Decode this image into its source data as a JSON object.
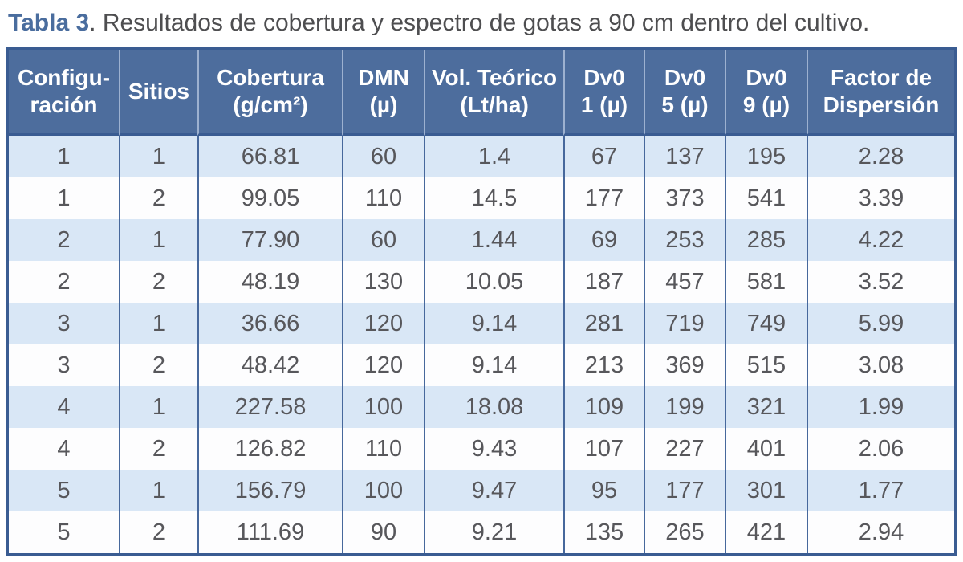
{
  "caption": {
    "label": "Tabla 3",
    "text": ". Resultados de cobertura y espectro de gotas a 90 cm dentro del cultivo."
  },
  "colors": {
    "header_bg": "#4d6d9d",
    "header_text": "#ffffff",
    "row_alt_bg": "#d9e7f6",
    "row_bg": "#fdfdfe",
    "outer_border": "#3a5c92",
    "data_divider": "#47689c",
    "header_divider": "#9db1d0",
    "caption_accent": "#4a6d9e",
    "body_text": "#57575b"
  },
  "chart_data": {
    "type": "table",
    "title": "Tabla 3. Resultados de cobertura y espectro de gotas a 90 cm dentro del cultivo.",
    "columns": [
      "Configu-ración",
      "Sitios",
      "Cobertura (g/cm²)",
      "DMN (µ)",
      "Vol. Teórico (Lt/ha)",
      "Dv0 1 (µ)",
      "Dv0 5 (µ)",
      "Dv0 9 (µ)",
      "Factor de Dispersión"
    ],
    "header_lines": [
      [
        "Configu-",
        "ración"
      ],
      [
        "Sitios"
      ],
      [
        "Cobertura",
        "(g/cm²)"
      ],
      [
        "DMN",
        "(µ)"
      ],
      [
        "Vol. Teórico",
        "(Lt/ha)"
      ],
      [
        "Dv0",
        "1 (µ)"
      ],
      [
        "Dv0",
        "5 (µ)"
      ],
      [
        "Dv0",
        "9 (µ)"
      ],
      [
        "Factor de",
        "Dispersión"
      ]
    ],
    "rows": [
      [
        "1",
        "1",
        "66.81",
        "60",
        "1.4",
        "67",
        "137",
        "195",
        "2.28"
      ],
      [
        "1",
        "2",
        "99.05",
        "110",
        "14.5",
        "177",
        "373",
        "541",
        "3.39"
      ],
      [
        "2",
        "1",
        "77.90",
        "60",
        "1.44",
        "69",
        "253",
        "285",
        "4.22"
      ],
      [
        "2",
        "2",
        "48.19",
        "130",
        "10.05",
        "187",
        "457",
        "581",
        "3.52"
      ],
      [
        "3",
        "1",
        "36.66",
        "120",
        "9.14",
        "281",
        "719",
        "749",
        "5.99"
      ],
      [
        "3",
        "2",
        "48.42",
        "120",
        "9.14",
        "213",
        "369",
        "515",
        "3.08"
      ],
      [
        "4",
        "1",
        "227.58",
        "100",
        "18.08",
        "109",
        "199",
        "321",
        "1.99"
      ],
      [
        "4",
        "2",
        "126.82",
        "110",
        "9.43",
        "107",
        "227",
        "401",
        "2.06"
      ],
      [
        "5",
        "1",
        "156.79",
        "100",
        "9.47",
        "95",
        "177",
        "301",
        "1.77"
      ],
      [
        "5",
        "2",
        "111.69",
        "90",
        "9.21",
        "135",
        "265",
        "421",
        "2.94"
      ]
    ]
  }
}
